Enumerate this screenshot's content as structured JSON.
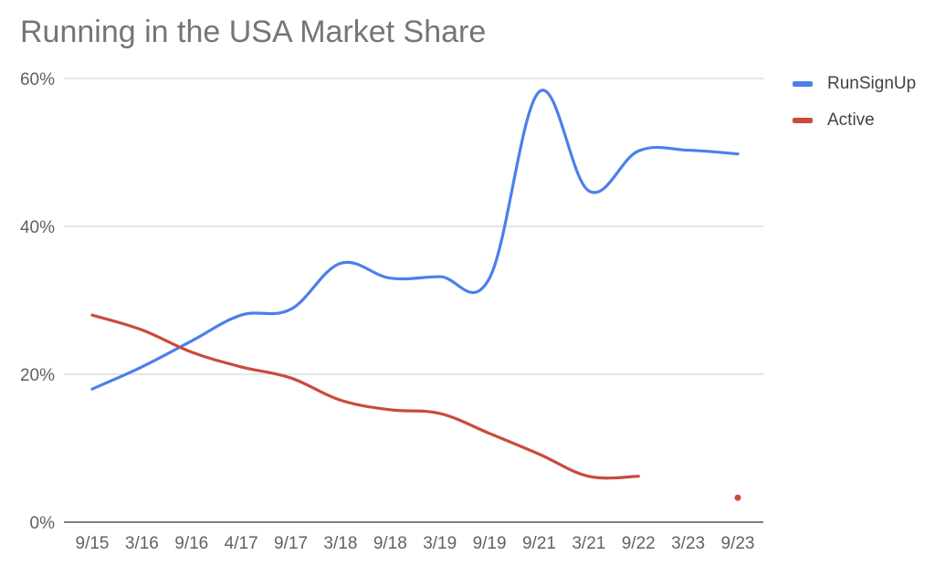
{
  "chart_data": {
    "type": "line",
    "title": "Running in the USA Market Share",
    "xlabel": "",
    "ylabel": "",
    "categories": [
      "9/15",
      "3/16",
      "9/16",
      "4/17",
      "9/17",
      "3/18",
      "9/18",
      "3/19",
      "9/19",
      "9/21",
      "3/21",
      "9/22",
      "3/23",
      "9/23"
    ],
    "y_ticks": [
      "0%",
      "20%",
      "40%",
      "60%"
    ],
    "ylim": [
      0,
      60
    ],
    "grid": true,
    "legend_position": "right",
    "series": [
      {
        "name": "RunSignUp",
        "color": "#4A80EC",
        "values": [
          18,
          21,
          24.5,
          28,
          28.8,
          35,
          33,
          33.2,
          33,
          58.2,
          44.8,
          50.2,
          50.3,
          49.8
        ]
      },
      {
        "name": "Active",
        "color": "#C94B3B",
        "values": [
          28,
          26,
          23,
          21,
          19.5,
          16.5,
          15.2,
          14.7,
          12,
          9.2,
          6.2,
          6.2,
          null,
          3.3
        ]
      }
    ]
  }
}
